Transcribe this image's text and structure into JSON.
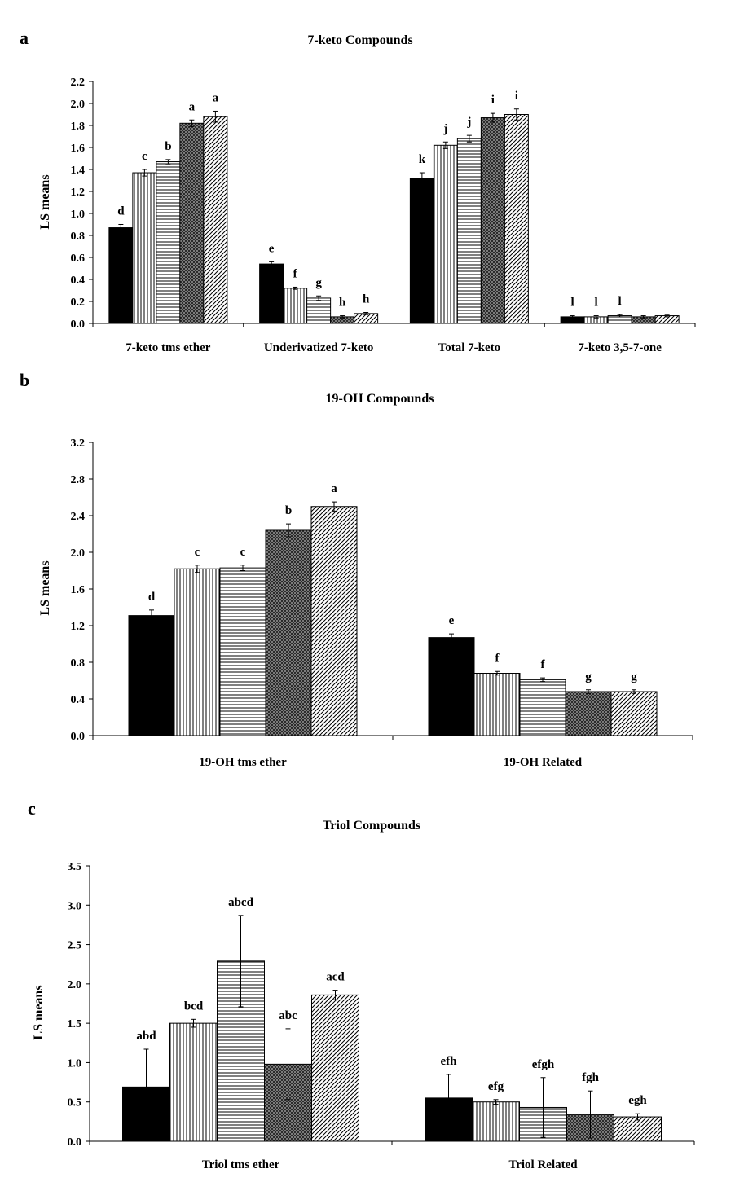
{
  "series_styles": [
    {
      "fill": "#000000",
      "pattern": "solid"
    },
    {
      "fill": "#ffffff",
      "pattern": "vertical-lines"
    },
    {
      "fill": "#ffffff",
      "pattern": "horizontal-lines"
    },
    {
      "fill": "#808080",
      "pattern": "crosshatch"
    },
    {
      "fill": "#ffffff",
      "pattern": "diagonal-lines"
    }
  ],
  "chart_data": [
    {
      "panel": "a",
      "type": "bar",
      "title": "7-keto Compounds",
      "ylabel": "LS means",
      "xlabel": "",
      "ylim": [
        0,
        2.2
      ],
      "yticks": [
        "0.0",
        "0.2",
        "0.4",
        "0.6",
        "0.8",
        "1.0",
        "1.2",
        "1.4",
        "1.6",
        "1.8",
        "2.0",
        "2.2"
      ],
      "grid": false,
      "categories": [
        "7-keto tms ether",
        "Underivatized 7-keto",
        "Total 7-keto",
        "7-keto 3,5-7-one"
      ],
      "series": [
        {
          "values": [
            0.87,
            0.54,
            1.32,
            0.06
          ],
          "errors": [
            0.03,
            0.02,
            0.05,
            0.01
          ],
          "labels": [
            "d",
            "e",
            "k",
            "l"
          ]
        },
        {
          "values": [
            1.37,
            0.32,
            1.62,
            0.06
          ],
          "errors": [
            0.03,
            0.01,
            0.03,
            0.01
          ],
          "labels": [
            "c",
            "f",
            "j",
            "l"
          ]
        },
        {
          "values": [
            1.47,
            0.23,
            1.68,
            0.07
          ],
          "errors": [
            0.02,
            0.02,
            0.03,
            0.01
          ],
          "labels": [
            "b",
            "g",
            "j",
            "l"
          ]
        },
        {
          "values": [
            1.82,
            0.06,
            1.87,
            0.06
          ],
          "errors": [
            0.03,
            0.01,
            0.04,
            0.01
          ],
          "labels": [
            "a",
            "h",
            "i",
            ""
          ]
        },
        {
          "values": [
            1.88,
            0.09,
            1.9,
            0.07
          ],
          "errors": [
            0.05,
            0.01,
            0.05,
            0.01
          ],
          "labels": [
            "a",
            "h",
            "i",
            ""
          ]
        }
      ]
    },
    {
      "panel": "b",
      "type": "bar",
      "title": "19-OH Compounds",
      "ylabel": "LS means",
      "xlabel": "",
      "ylim": [
        0,
        3.2
      ],
      "yticks": [
        "0.0",
        "0.4",
        "0.8",
        "1.2",
        "1.6",
        "2.0",
        "2.4",
        "2.8",
        "3.2"
      ],
      "grid": false,
      "categories": [
        "19-OH tms ether",
        "19-OH Related"
      ],
      "series": [
        {
          "values": [
            1.31,
            1.07
          ],
          "errors": [
            0.06,
            0.04
          ],
          "labels": [
            "d",
            "e"
          ]
        },
        {
          "values": [
            1.82,
            0.68
          ],
          "errors": [
            0.04,
            0.02
          ],
          "labels": [
            "c",
            "f"
          ]
        },
        {
          "values": [
            1.83,
            0.61
          ],
          "errors": [
            0.03,
            0.02
          ],
          "labels": [
            "c",
            "f"
          ]
        },
        {
          "values": [
            2.24,
            0.48
          ],
          "errors": [
            0.07,
            0.02
          ],
          "labels": [
            "b",
            "g"
          ]
        },
        {
          "values": [
            2.5,
            0.48
          ],
          "errors": [
            0.05,
            0.02
          ],
          "labels": [
            "a",
            "g"
          ]
        }
      ]
    },
    {
      "panel": "c",
      "type": "bar",
      "title": "Triol Compounds",
      "ylabel": "LS means",
      "xlabel": "",
      "ylim": [
        0,
        3.5
      ],
      "yticks": [
        "0.0",
        "0.5",
        "1.0",
        "1.5",
        "2.0",
        "2.5",
        "3.0",
        "3.5"
      ],
      "grid": false,
      "categories": [
        "Triol tms ether",
        "Triol Related"
      ],
      "series": [
        {
          "values": [
            0.69,
            0.55
          ],
          "errors": [
            0.48,
            0.3
          ],
          "labels": [
            "abd",
            "efh"
          ]
        },
        {
          "values": [
            1.5,
            0.5
          ],
          "errors": [
            0.05,
            0.03
          ],
          "labels": [
            "bcd",
            "efg"
          ]
        },
        {
          "values": [
            2.29,
            0.43
          ],
          "errors": [
            0.58,
            0.38
          ],
          "labels": [
            "abcd",
            "efgh"
          ]
        },
        {
          "values": [
            0.98,
            0.34
          ],
          "errors": [
            0.45,
            0.3
          ],
          "labels": [
            "abc",
            "fgh"
          ]
        },
        {
          "values": [
            1.86,
            0.31
          ],
          "errors": [
            0.06,
            0.04
          ],
          "labels": [
            "acd",
            "egh"
          ]
        }
      ]
    }
  ]
}
